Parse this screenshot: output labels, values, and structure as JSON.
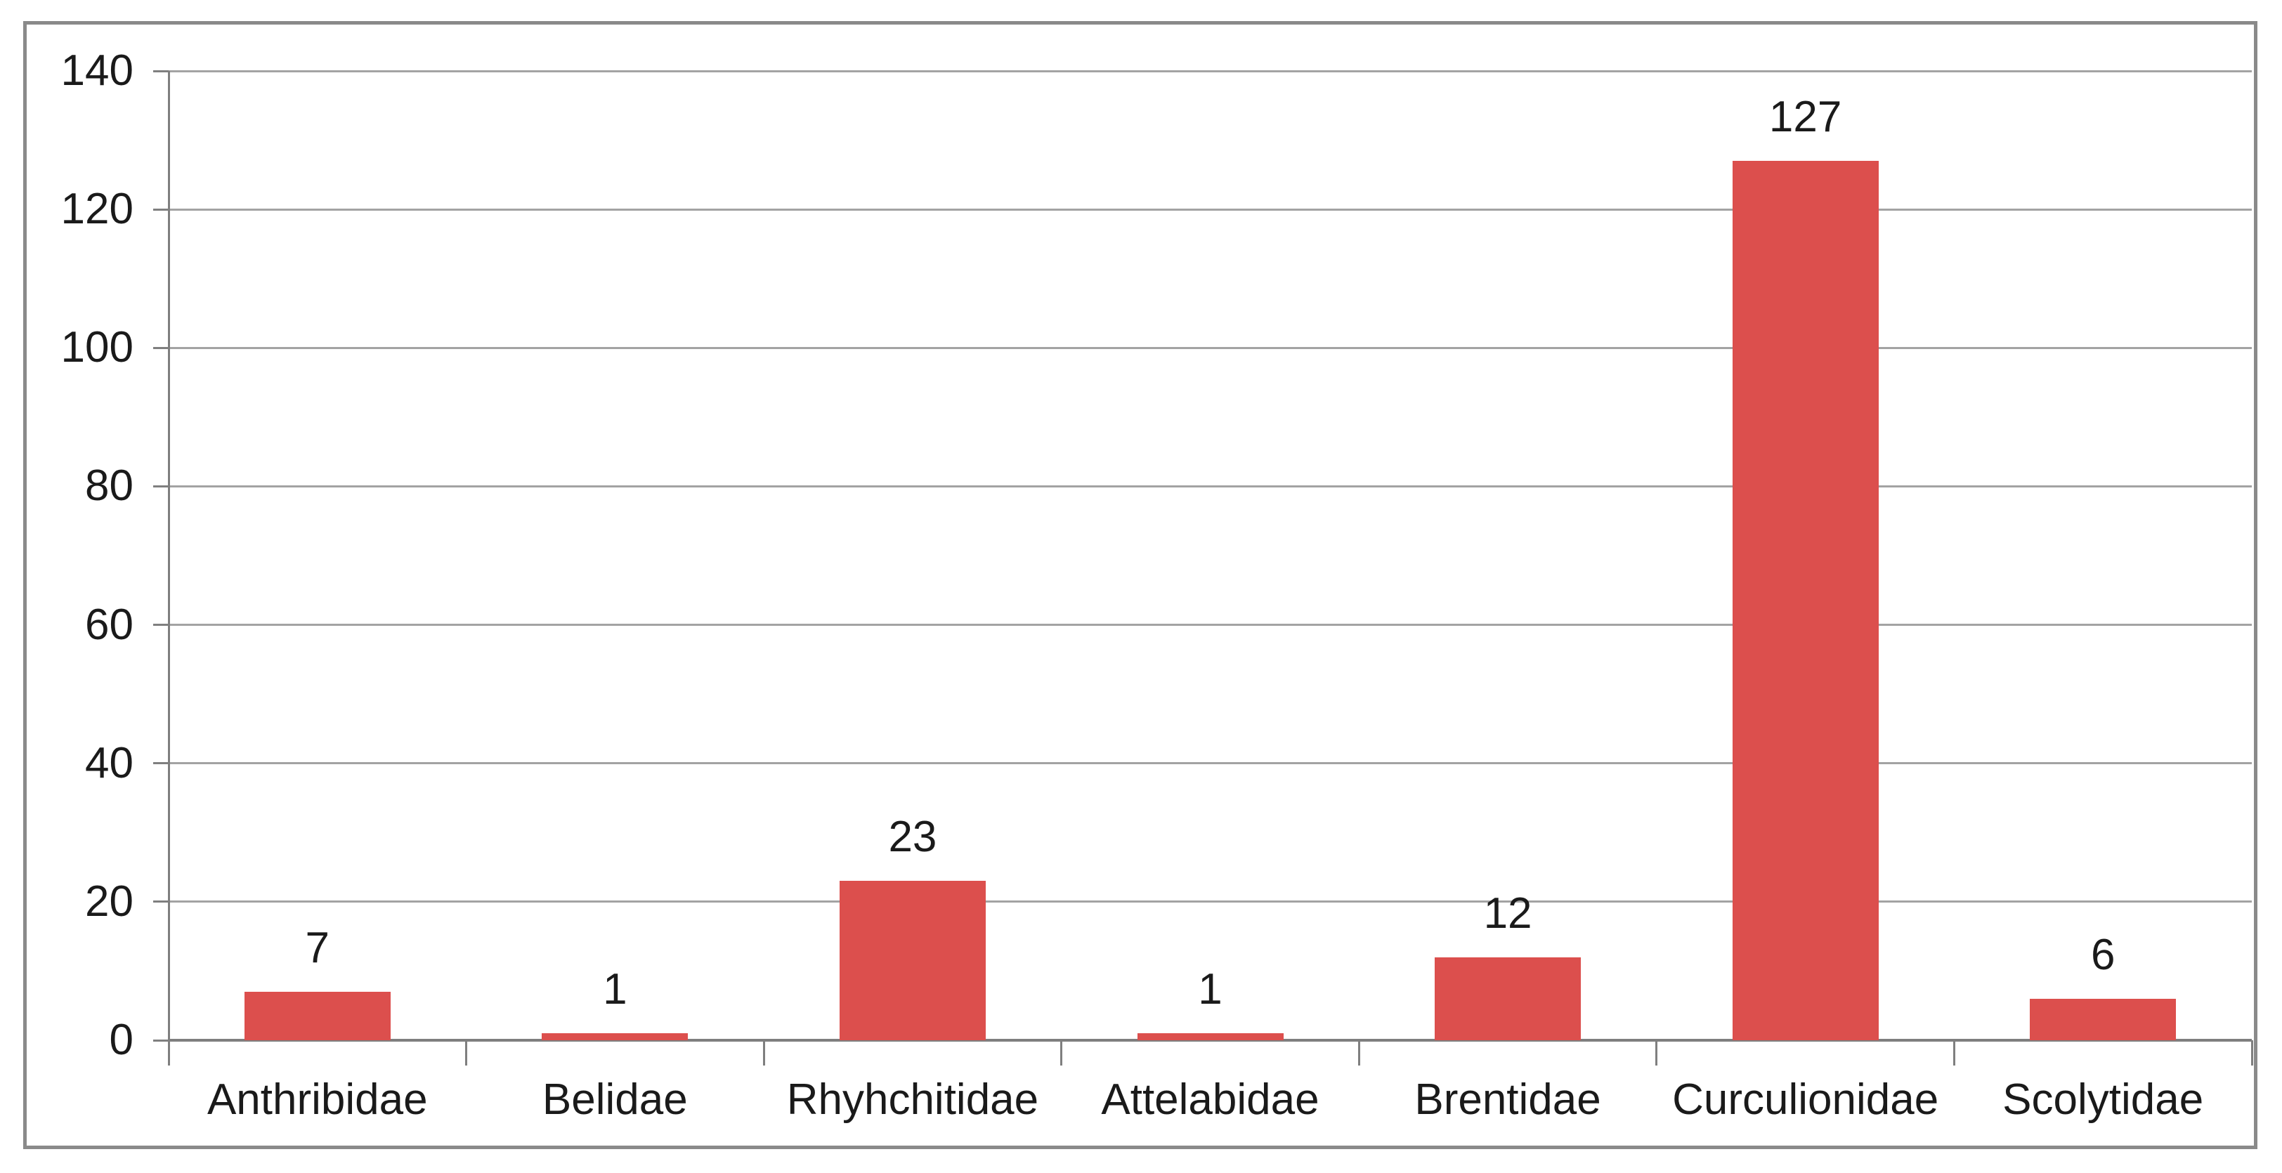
{
  "chart_data": {
    "type": "bar",
    "categories": [
      "Anthribidae",
      "Belidae",
      "Rhyhchitidae",
      "Attelabidae",
      "Brentidae",
      "Curculionidae",
      "Scolytidae"
    ],
    "values": [
      7,
      1,
      23,
      1,
      12,
      127,
      6
    ],
    "data_labels": [
      "7",
      "1",
      "23",
      "1",
      "12",
      "127",
      "6"
    ],
    "title": "",
    "xlabel": "",
    "ylabel": "",
    "ylim": [
      0,
      140
    ],
    "ytick_interval": 20,
    "ytick_labels": [
      "0",
      "20",
      "40",
      "60",
      "80",
      "100",
      "120",
      "140"
    ],
    "grid": true,
    "legend_position": "none",
    "series_name": ""
  },
  "colors": {
    "bar": "#DC4F4D",
    "gridline": "#A3A3A3",
    "axis": "#7F7F7F",
    "frame_border": "#8A8A8A",
    "text": "#1A1A1A",
    "background": "#FFFFFF"
  }
}
